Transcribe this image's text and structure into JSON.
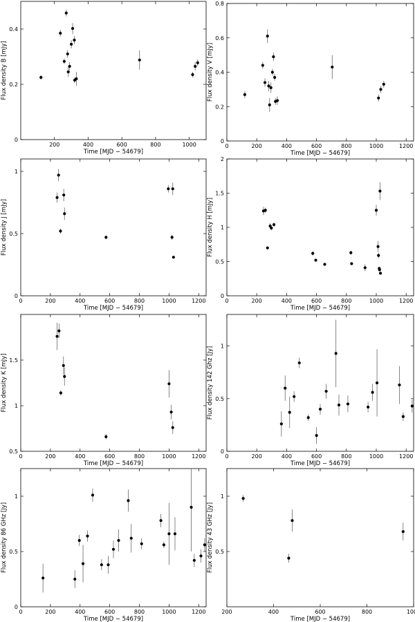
{
  "chart_data": [
    {
      "type": "scatter",
      "xlabel": "Time [MJD − 54679]",
      "ylabel": "Flux density B [mJy]",
      "xlim": [
        0,
        1100
      ],
      "ylim": [
        0,
        0.5
      ],
      "xticks": [
        200,
        400,
        600,
        800,
        1000
      ],
      "yticks": [
        0,
        0.2,
        0.4
      ],
      "yticklabels": [
        "0",
        "0.2",
        "0.4"
      ],
      "series": [
        {
          "points": [
            {
              "x": 120,
              "y": 0.225,
              "err": 0.008
            },
            {
              "x": 235,
              "y": 0.385,
              "err": 0.012
            },
            {
              "x": 258,
              "y": 0.283,
              "err": 0.01
            },
            {
              "x": 270,
              "y": 0.458,
              "err": 0.012
            },
            {
              "x": 278,
              "y": 0.31,
              "err": 0.014
            },
            {
              "x": 282,
              "y": 0.245,
              "err": 0.018
            },
            {
              "x": 290,
              "y": 0.265,
              "err": 0.015
            },
            {
              "x": 300,
              "y": 0.345,
              "err": 0.015
            },
            {
              "x": 308,
              "y": 0.402,
              "err": 0.02
            },
            {
              "x": 318,
              "y": 0.36,
              "err": 0.015
            },
            {
              "x": 320,
              "y": 0.215,
              "err": 0.01
            },
            {
              "x": 330,
              "y": 0.22,
              "err": 0.025
            },
            {
              "x": 705,
              "y": 0.288,
              "err": 0.035
            },
            {
              "x": 1020,
              "y": 0.235,
              "err": 0.01
            },
            {
              "x": 1035,
              "y": 0.265,
              "err": 0.015
            },
            {
              "x": 1050,
              "y": 0.278,
              "err": 0.012
            }
          ]
        }
      ]
    },
    {
      "type": "scatter",
      "xlabel": "Time [MJD − 54679]",
      "ylabel": "Flux density V [mJy]",
      "xlim": [
        0,
        1250
      ],
      "ylim": [
        0,
        0.8
      ],
      "xticks": [
        0,
        200,
        400,
        600,
        800,
        1000,
        1200
      ],
      "yticks": [
        0,
        0.2,
        0.4,
        0.6,
        0.8
      ],
      "yticklabels": [
        "0",
        "0.2",
        "0.4",
        "0.6",
        "0.8"
      ],
      "series": [
        {
          "points": [
            {
              "x": 120,
              "y": 0.27,
              "err": 0.02
            },
            {
              "x": 240,
              "y": 0.44,
              "err": 0.02
            },
            {
              "x": 255,
              "y": 0.34,
              "err": 0.025
            },
            {
              "x": 272,
              "y": 0.61,
              "err": 0.04
            },
            {
              "x": 280,
              "y": 0.32,
              "err": 0.03
            },
            {
              "x": 286,
              "y": 0.21,
              "err": 0.04
            },
            {
              "x": 295,
              "y": 0.31,
              "err": 0.03
            },
            {
              "x": 305,
              "y": 0.4,
              "err": 0.02
            },
            {
              "x": 312,
              "y": 0.49,
              "err": 0.025
            },
            {
              "x": 320,
              "y": 0.37,
              "err": 0.02
            },
            {
              "x": 325,
              "y": 0.23,
              "err": 0.02
            },
            {
              "x": 338,
              "y": 0.235,
              "err": 0.025
            },
            {
              "x": 705,
              "y": 0.43,
              "err": 0.07
            },
            {
              "x": 1015,
              "y": 0.25,
              "err": 0.02
            },
            {
              "x": 1030,
              "y": 0.3,
              "err": 0.02
            },
            {
              "x": 1050,
              "y": 0.33,
              "err": 0.02
            }
          ]
        }
      ]
    },
    {
      "type": "scatter",
      "xlabel": "Time [MJD − 54679]",
      "ylabel": "Flux density J [mJy]",
      "xlim": [
        0,
        1250
      ],
      "ylim": [
        0,
        1.1
      ],
      "xticks": [
        0,
        200,
        400,
        600,
        800,
        1000,
        1200
      ],
      "yticks": [
        0,
        0.5,
        1
      ],
      "yticklabels": [
        "0",
        "0.5",
        "1"
      ],
      "series": [
        {
          "points": [
            {
              "x": 245,
              "y": 0.79,
              "err": 0.04
            },
            {
              "x": 255,
              "y": 0.97,
              "err": 0.05
            },
            {
              "x": 268,
              "y": 0.52,
              "err": 0.02
            },
            {
              "x": 290,
              "y": 0.81,
              "err": 0.05
            },
            {
              "x": 295,
              "y": 0.66,
              "err": 0.05
            },
            {
              "x": 575,
              "y": 0.47,
              "err": 0.015
            },
            {
              "x": 995,
              "y": 0.86,
              "err": 0.03
            },
            {
              "x": 1020,
              "y": 0.47,
              "err": 0.02
            },
            {
              "x": 1025,
              "y": 0.86,
              "err": 0.05
            },
            {
              "x": 1030,
              "y": 0.31,
              "err": 0.01
            }
          ]
        }
      ]
    },
    {
      "type": "scatter",
      "xlabel": "Time [MJD − 54679]",
      "ylabel": "Flux density H [mJy]",
      "xlim": [
        0,
        1250
      ],
      "ylim": [
        0,
        2
      ],
      "xticks": [
        0,
        200,
        400,
        600,
        800,
        1000,
        1200
      ],
      "yticks": [
        0,
        0.5,
        1,
        1.5,
        2
      ],
      "yticklabels": [
        "0",
        "0.5",
        "1",
        "1.5",
        "2"
      ],
      "series": [
        {
          "points": [
            {
              "x": 245,
              "y": 1.24,
              "err": 0.06
            },
            {
              "x": 258,
              "y": 1.25,
              "err": 0.04
            },
            {
              "x": 272,
              "y": 0.7,
              "err": 0.02
            },
            {
              "x": 290,
              "y": 1.02,
              "err": 0.04
            },
            {
              "x": 298,
              "y": 0.99,
              "err": 0.03
            },
            {
              "x": 315,
              "y": 1.04,
              "err": 0.03
            },
            {
              "x": 575,
              "y": 0.62,
              "err": 0.03
            },
            {
              "x": 595,
              "y": 0.52,
              "err": 0.02
            },
            {
              "x": 655,
              "y": 0.46,
              "err": 0.02
            },
            {
              "x": 830,
              "y": 0.63,
              "err": 0.03
            },
            {
              "x": 835,
              "y": 0.47,
              "err": 0.02
            },
            {
              "x": 925,
              "y": 0.41,
              "err": 0.05
            },
            {
              "x": 1000,
              "y": 1.25,
              "err": 0.08
            },
            {
              "x": 1012,
              "y": 0.72,
              "err": 0.08
            },
            {
              "x": 1015,
              "y": 0.59,
              "err": 0.04
            },
            {
              "x": 1020,
              "y": 0.4,
              "err": 0.02
            },
            {
              "x": 1022,
              "y": 0.38,
              "err": 0.02
            },
            {
              "x": 1025,
              "y": 1.53,
              "err": 0.13
            },
            {
              "x": 1028,
              "y": 0.33,
              "err": 0.02
            }
          ]
        }
      ]
    },
    {
      "type": "scatter",
      "xlabel": "Time [MJD − 54679]",
      "ylabel": "Flux density K [mJy]",
      "xlim": [
        0,
        1250
      ],
      "ylim": [
        0.5,
        2
      ],
      "xticks": [
        0,
        200,
        400,
        600,
        800,
        1000,
        1200
      ],
      "yticks": [
        0.5,
        1,
        1.5
      ],
      "yticklabels": [
        "0.5",
        "1",
        "1.5"
      ],
      "series": [
        {
          "points": [
            {
              "x": 245,
              "y": 1.76,
              "err": 0.15
            },
            {
              "x": 258,
              "y": 1.82,
              "err": 0.08
            },
            {
              "x": 270,
              "y": 1.14,
              "err": 0.03
            },
            {
              "x": 288,
              "y": 1.44,
              "err": 0.1
            },
            {
              "x": 295,
              "y": 1.32,
              "err": 0.1
            },
            {
              "x": 575,
              "y": 0.66,
              "err": 0.03
            },
            {
              "x": 1000,
              "y": 1.24,
              "err": 0.15
            },
            {
              "x": 1015,
              "y": 0.93,
              "err": 0.08
            },
            {
              "x": 1025,
              "y": 0.76,
              "err": 0.07
            }
          ]
        }
      ]
    },
    {
      "type": "scatter",
      "xlabel": "Time [MJD − 54679]",
      "ylabel": "Flux density 142 Ghz [Jy]",
      "xlim": [
        0,
        1250
      ],
      "ylim": [
        0,
        1.3
      ],
      "xticks": [
        0,
        200,
        400,
        600,
        800,
        1000,
        1200
      ],
      "yticks": [
        0,
        0.5,
        1
      ],
      "yticklabels": [
        "0",
        "0.5",
        "1"
      ],
      "series": [
        {
          "points": [
            {
              "x": 365,
              "y": 0.26,
              "err": 0.12
            },
            {
              "x": 390,
              "y": 0.6,
              "err": 0.12
            },
            {
              "x": 420,
              "y": 0.37,
              "err": 0.15
            },
            {
              "x": 450,
              "y": 0.52,
              "err": 0.05
            },
            {
              "x": 485,
              "y": 0.84,
              "err": 0.05
            },
            {
              "x": 545,
              "y": 0.32,
              "err": 0.03
            },
            {
              "x": 600,
              "y": 0.15,
              "err": 0.08
            },
            {
              "x": 625,
              "y": 0.4,
              "err": 0.05
            },
            {
              "x": 665,
              "y": 0.57,
              "err": 0.07
            },
            {
              "x": 730,
              "y": 0.93,
              "err": 0.32
            },
            {
              "x": 750,
              "y": 0.44,
              "err": 0.1
            },
            {
              "x": 810,
              "y": 0.45,
              "err": 0.08
            },
            {
              "x": 945,
              "y": 0.42,
              "err": 0.05
            },
            {
              "x": 975,
              "y": 0.56,
              "err": 0.08
            },
            {
              "x": 1005,
              "y": 0.65,
              "err": 0.32
            },
            {
              "x": 1155,
              "y": 0.63,
              "err": 0.18
            },
            {
              "x": 1180,
              "y": 0.33,
              "err": 0.04
            },
            {
              "x": 1240,
              "y": 0.43,
              "err": 0.06
            }
          ]
        }
      ]
    },
    {
      "type": "scatter",
      "xlabel": "Time [MJD − 54679]",
      "ylabel": "Flux density 86 GHz [Jy]",
      "xlim": [
        0,
        1250
      ],
      "ylim": [
        0,
        1.25
      ],
      "xticks": [
        0,
        200,
        400,
        600,
        800,
        1000,
        1200
      ],
      "yticks": [
        0,
        0.5,
        1
      ],
      "yticklabels": [
        "0",
        "0.5",
        "1"
      ],
      "series": [
        {
          "points": [
            {
              "x": 150,
              "y": 0.26,
              "err": 0.13
            },
            {
              "x": 365,
              "y": 0.25,
              "err": 0.08
            },
            {
              "x": 395,
              "y": 0.6,
              "err": 0.05
            },
            {
              "x": 420,
              "y": 0.39,
              "err": 0.17
            },
            {
              "x": 450,
              "y": 0.64,
              "err": 0.05
            },
            {
              "x": 485,
              "y": 1.01,
              "err": 0.06
            },
            {
              "x": 545,
              "y": 0.38,
              "err": 0.05
            },
            {
              "x": 590,
              "y": 0.38,
              "err": 0.08
            },
            {
              "x": 625,
              "y": 0.52,
              "err": 0.08
            },
            {
              "x": 660,
              "y": 0.6,
              "err": 0.1
            },
            {
              "x": 725,
              "y": 0.96,
              "err": 0.1
            },
            {
              "x": 745,
              "y": 0.62,
              "err": 0.13
            },
            {
              "x": 815,
              "y": 0.57,
              "err": 0.05
            },
            {
              "x": 945,
              "y": 0.78,
              "err": 0.06
            },
            {
              "x": 965,
              "y": 0.56,
              "err": 0.03
            },
            {
              "x": 1000,
              "y": 0.66,
              "err": 0.28
            },
            {
              "x": 1040,
              "y": 0.66,
              "err": 0.15
            },
            {
              "x": 1150,
              "y": 0.9,
              "err": 0.4
            },
            {
              "x": 1170,
              "y": 0.42,
              "err": 0.06
            },
            {
              "x": 1215,
              "y": 0.46,
              "err": 0.06
            },
            {
              "x": 1240,
              "y": 0.56,
              "err": 0.06
            }
          ]
        }
      ]
    },
    {
      "type": "scatter",
      "xlabel": "Time [MJD − 54679]",
      "ylabel": "Flux density 43 GHz [Jy]",
      "xlim": [
        200,
        1000
      ],
      "ylim": [
        0,
        1.25
      ],
      "xticks": [
        200,
        400,
        600,
        800,
        1000
      ],
      "yticks": [
        0.5,
        1
      ],
      "yticklabels": [
        "0.5",
        "1"
      ],
      "series": [
        {
          "points": [
            {
              "x": 270,
              "y": 0.98,
              "err": 0.03
            },
            {
              "x": 465,
              "y": 0.44,
              "err": 0.04
            },
            {
              "x": 480,
              "y": 0.78,
              "err": 0.1
            },
            {
              "x": 955,
              "y": 0.68,
              "err": 0.08
            }
          ]
        }
      ]
    }
  ]
}
